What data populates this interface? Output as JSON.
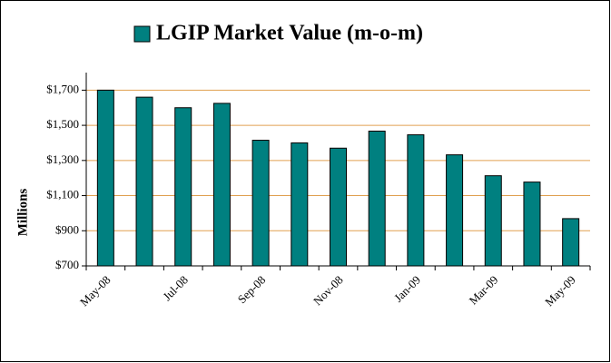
{
  "chart_data": {
    "type": "bar",
    "categories": [
      "May-08",
      null,
      "Jul-08",
      null,
      "Sep-08",
      null,
      "Nov-08",
      null,
      "Jan-09",
      null,
      "Mar-09",
      null,
      "May-09"
    ],
    "series": [
      {
        "name": "LGIP Market Value (m-o-m)",
        "color": "#008080",
        "values": [
          1700,
          1660,
          1600,
          1625,
          1415,
          1400,
          1370,
          1467,
          1446,
          1332,
          1213,
          1177,
          969
        ]
      }
    ],
    "y_label": "Millions",
    "ylim": [
      700,
      1800
    ],
    "yticks": [
      {
        "value": 700,
        "label": "$700"
      },
      {
        "value": 900,
        "label": "$900"
      },
      {
        "value": 1100,
        "label": "$1,100"
      },
      {
        "value": 1300,
        "label": "$1,300"
      },
      {
        "value": 1500,
        "label": "$1,500"
      },
      {
        "value": 1700,
        "label": "$1,700"
      }
    ],
    "grid": true,
    "grid_color": "#e0a050"
  }
}
